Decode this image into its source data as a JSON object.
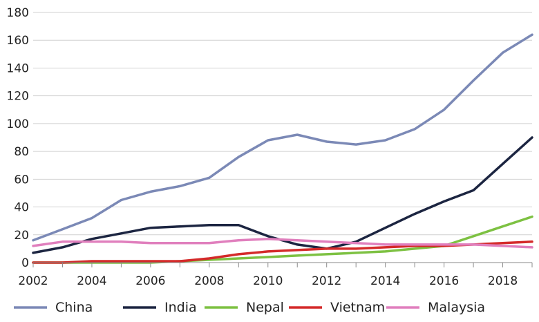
{
  "chart_data": {
    "type": "line",
    "title": "",
    "xlabel": "",
    "ylabel": "",
    "x": [
      2002,
      2003,
      2004,
      2005,
      2006,
      2007,
      2008,
      2009,
      2010,
      2011,
      2012,
      2013,
      2014,
      2015,
      2016,
      2017,
      2018,
      2019
    ],
    "xticks": [
      2002,
      2004,
      2006,
      2008,
      2010,
      2012,
      2014,
      2016,
      2018
    ],
    "yticks": [
      0,
      20,
      40,
      60,
      80,
      100,
      120,
      140,
      160,
      180
    ],
    "xlim": [
      2002,
      2019
    ],
    "ylim": [
      0,
      180
    ],
    "grid": "horizontal",
    "legend_position": "bottom",
    "series": [
      {
        "name": "China",
        "color": "#7b89b6",
        "values": [
          16,
          24,
          32,
          45,
          51,
          55,
          61,
          76,
          88,
          92,
          87,
          85,
          88,
          96,
          110,
          131,
          151,
          164
        ]
      },
      {
        "name": "India",
        "color": "#1c2541",
        "values": [
          7,
          11,
          17,
          21,
          25,
          26,
          27,
          27,
          19,
          13,
          10,
          15,
          25,
          35,
          44,
          52,
          71,
          90
        ]
      },
      {
        "name": "Nepal",
        "color": "#7dc142",
        "values": [
          0,
          0,
          0,
          0,
          0,
          1,
          2,
          3,
          4,
          5,
          6,
          7,
          8,
          10,
          12,
          19,
          26,
          33
        ]
      },
      {
        "name": "Vietnam",
        "color": "#d42a2a",
        "values": [
          0,
          0,
          1,
          1,
          1,
          1,
          3,
          6,
          8,
          9,
          10,
          10,
          11,
          12,
          12,
          13,
          14,
          15
        ]
      },
      {
        "name": "Malaysia",
        "color": "#e07fbd",
        "values": [
          12,
          15,
          15,
          15,
          14,
          14,
          14,
          16,
          17,
          16,
          15,
          14,
          13,
          13,
          13,
          13,
          12,
          11
        ]
      }
    ]
  }
}
